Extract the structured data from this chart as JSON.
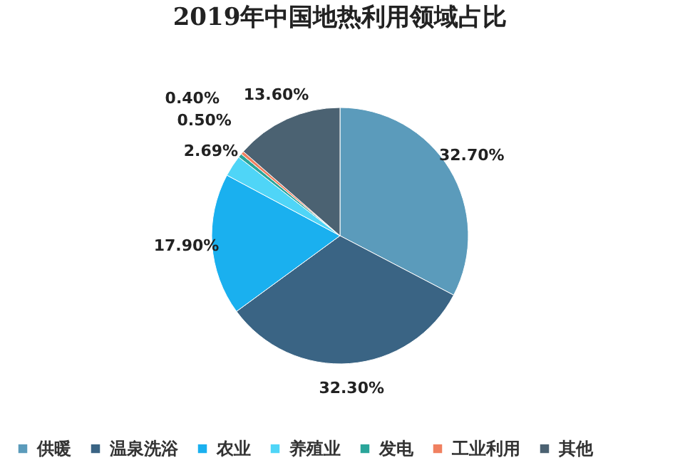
{
  "chart_data": {
    "type": "pie",
    "title": "2019年中国地热利用领域占比",
    "categories": [
      "供暖",
      "温泉洗浴",
      "农业",
      "养殖业",
      "发电",
      "工业利用",
      "其他"
    ],
    "values": [
      32.7,
      32.3,
      17.9,
      2.69,
      0.5,
      0.4,
      13.6
    ],
    "value_labels": [
      "32.70%",
      "32.30%",
      "17.90%",
      "2.69%",
      "0.50%",
      "0.40%",
      "13.60%"
    ],
    "colors": [
      "#5b9bbb",
      "#3a6484",
      "#1ab0ef",
      "#4fd5f7",
      "#2aa59a",
      "#f08060",
      "#4b6272"
    ],
    "legend": "bottom"
  }
}
